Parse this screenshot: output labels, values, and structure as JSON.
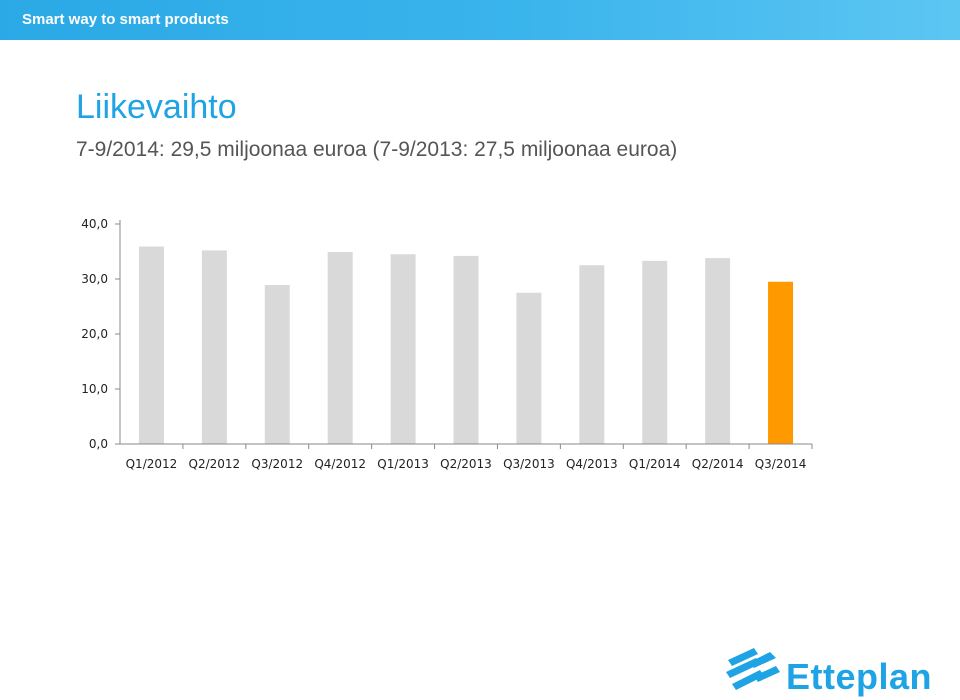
{
  "header": {
    "banner_text": "Smart way to smart products",
    "title": "Liikevaihto",
    "subtitle": "7-9/2014: 29,5 miljoonaa euroa (7-9/2013: 27,5 miljoonaa euroa)"
  },
  "logo": {
    "text": "Etteplan"
  },
  "colors": {
    "bar": "#d9d9d9",
    "highlight": "#ff9900",
    "accent": "#1ea3e4"
  },
  "chart_data": {
    "type": "bar",
    "categories": [
      "Q1/2012",
      "Q2/2012",
      "Q3/2012",
      "Q4/2012",
      "Q1/2013",
      "Q2/2013",
      "Q3/2013",
      "Q4/2013",
      "Q1/2014",
      "Q2/2014",
      "Q3/2014"
    ],
    "values": [
      35.9,
      35.2,
      28.9,
      34.9,
      34.5,
      34.2,
      27.5,
      32.5,
      33.3,
      33.8,
      29.5
    ],
    "highlight_index": 10,
    "yticks": [
      "0,0",
      "10,0",
      "20,0",
      "30,0",
      "40,0"
    ],
    "ylim": [
      0,
      40
    ],
    "grid": false
  }
}
